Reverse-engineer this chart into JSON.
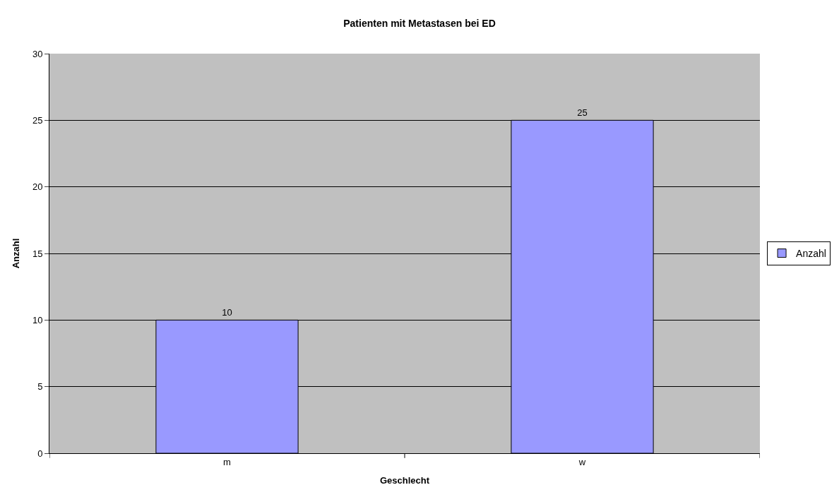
{
  "chart_data": {
    "type": "bar",
    "title": "Patienten mit Metastasen bei ED",
    "xlabel": "Geschlecht",
    "ylabel": "Anzahl",
    "categories": [
      "m",
      "w"
    ],
    "series": [
      {
        "name": "Anzahl",
        "color": "#9999ff",
        "values": [
          10,
          25
        ]
      }
    ],
    "ylim": [
      0,
      30
    ],
    "yticks": [
      0,
      5,
      10,
      15,
      20,
      25,
      30
    ],
    "grid": "y",
    "legend": "right",
    "data_labels": true
  }
}
